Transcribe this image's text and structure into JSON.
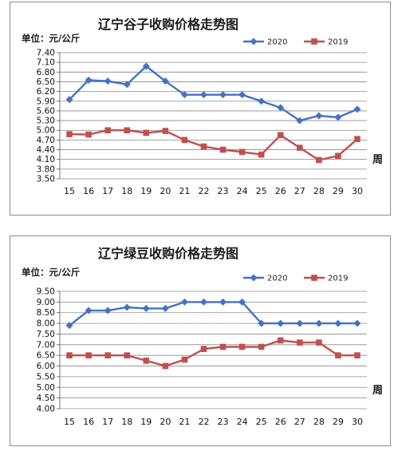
{
  "chart_data": [
    {
      "type": "line",
      "title": "辽宁谷子收购价格走势图",
      "unit_label": "单位：元/公斤",
      "xlabel": "周",
      "x": [
        15,
        16,
        17,
        18,
        19,
        20,
        21,
        22,
        23,
        24,
        25,
        26,
        27,
        28,
        29,
        30
      ],
      "ylim": [
        3.5,
        7.4
      ],
      "yticks": [
        "3.50",
        "3.80",
        "4.10",
        "4.40",
        "4.70",
        "5.00",
        "5.30",
        "5.60",
        "5.90",
        "6.20",
        "6.50",
        "6.80",
        "7.10",
        "7.40"
      ],
      "legend_position": "top-right",
      "grid": true,
      "series": [
        {
          "name": "2020",
          "color": "#4472C4",
          "marker": "diamond",
          "values": [
            5.95,
            6.55,
            6.52,
            6.42,
            6.98,
            6.52,
            6.1,
            6.1,
            6.1,
            6.1,
            5.9,
            5.7,
            5.3,
            5.45,
            5.4,
            5.65
          ]
        },
        {
          "name": "2019",
          "color": "#C0504D",
          "marker": "square",
          "values": [
            4.88,
            4.87,
            5.0,
            5.0,
            4.92,
            4.98,
            4.7,
            4.5,
            4.4,
            4.33,
            4.25,
            4.85,
            4.46,
            4.08,
            4.21,
            4.73
          ]
        }
      ]
    },
    {
      "type": "line",
      "title": "辽宁绿豆收购价格走势图",
      "unit_label": "单位：元/公斤",
      "xlabel": "周",
      "x": [
        15,
        16,
        17,
        18,
        19,
        20,
        21,
        22,
        23,
        24,
        25,
        26,
        27,
        28,
        29,
        30
      ],
      "ylim": [
        4.0,
        9.5
      ],
      "yticks": [
        "4.00",
        "4.50",
        "5.00",
        "5.50",
        "6.00",
        "6.50",
        "7.00",
        "7.50",
        "8.00",
        "8.50",
        "9.00",
        "9.50"
      ],
      "legend_position": "top-right",
      "grid": true,
      "series": [
        {
          "name": "2020",
          "color": "#4472C4",
          "marker": "diamond",
          "values": [
            7.9,
            8.6,
            8.6,
            8.75,
            8.7,
            8.7,
            9.0,
            9.0,
            9.0,
            9.0,
            8.0,
            8.0,
            8.0,
            8.0,
            8.0,
            8.0
          ]
        },
        {
          "name": "2019",
          "color": "#C0504D",
          "marker": "square",
          "values": [
            6.5,
            6.5,
            6.5,
            6.5,
            6.25,
            6.0,
            6.3,
            6.8,
            6.9,
            6.9,
            6.9,
            7.2,
            7.1,
            7.1,
            6.5,
            6.5
          ]
        }
      ]
    }
  ]
}
